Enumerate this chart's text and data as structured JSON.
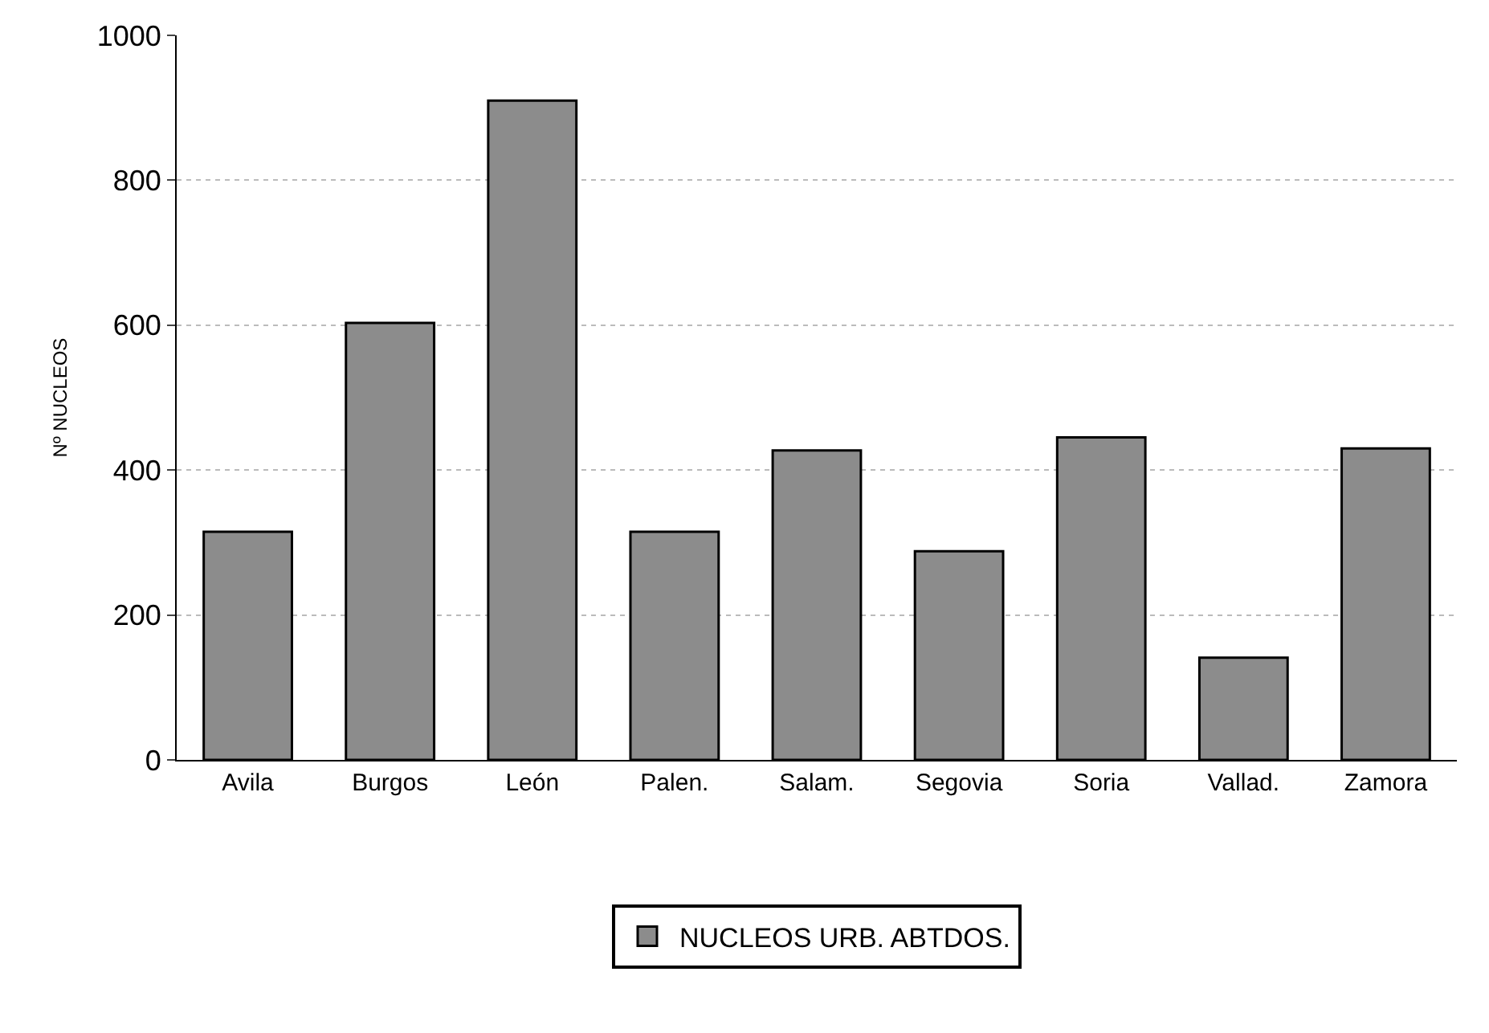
{
  "chart_data": {
    "type": "bar",
    "ylabel": "Nº NUCLEOS",
    "categories": [
      "Avila",
      "Burgos",
      "León",
      "Palen.",
      "Salam.",
      "Segovia",
      "Soria",
      "Vallad.",
      "Zamora"
    ],
    "series": [
      {
        "name": "NUCLEOS URB. ABTDOS.",
        "color": "#8c8c8c",
        "values": [
          315,
          603,
          910,
          315,
          427,
          288,
          445,
          141,
          430
        ]
      }
    ],
    "ylim": [
      0,
      1000
    ],
    "yticks": [
      0,
      200,
      400,
      600,
      800,
      1000
    ],
    "grid": "y",
    "legend": "bottom"
  }
}
